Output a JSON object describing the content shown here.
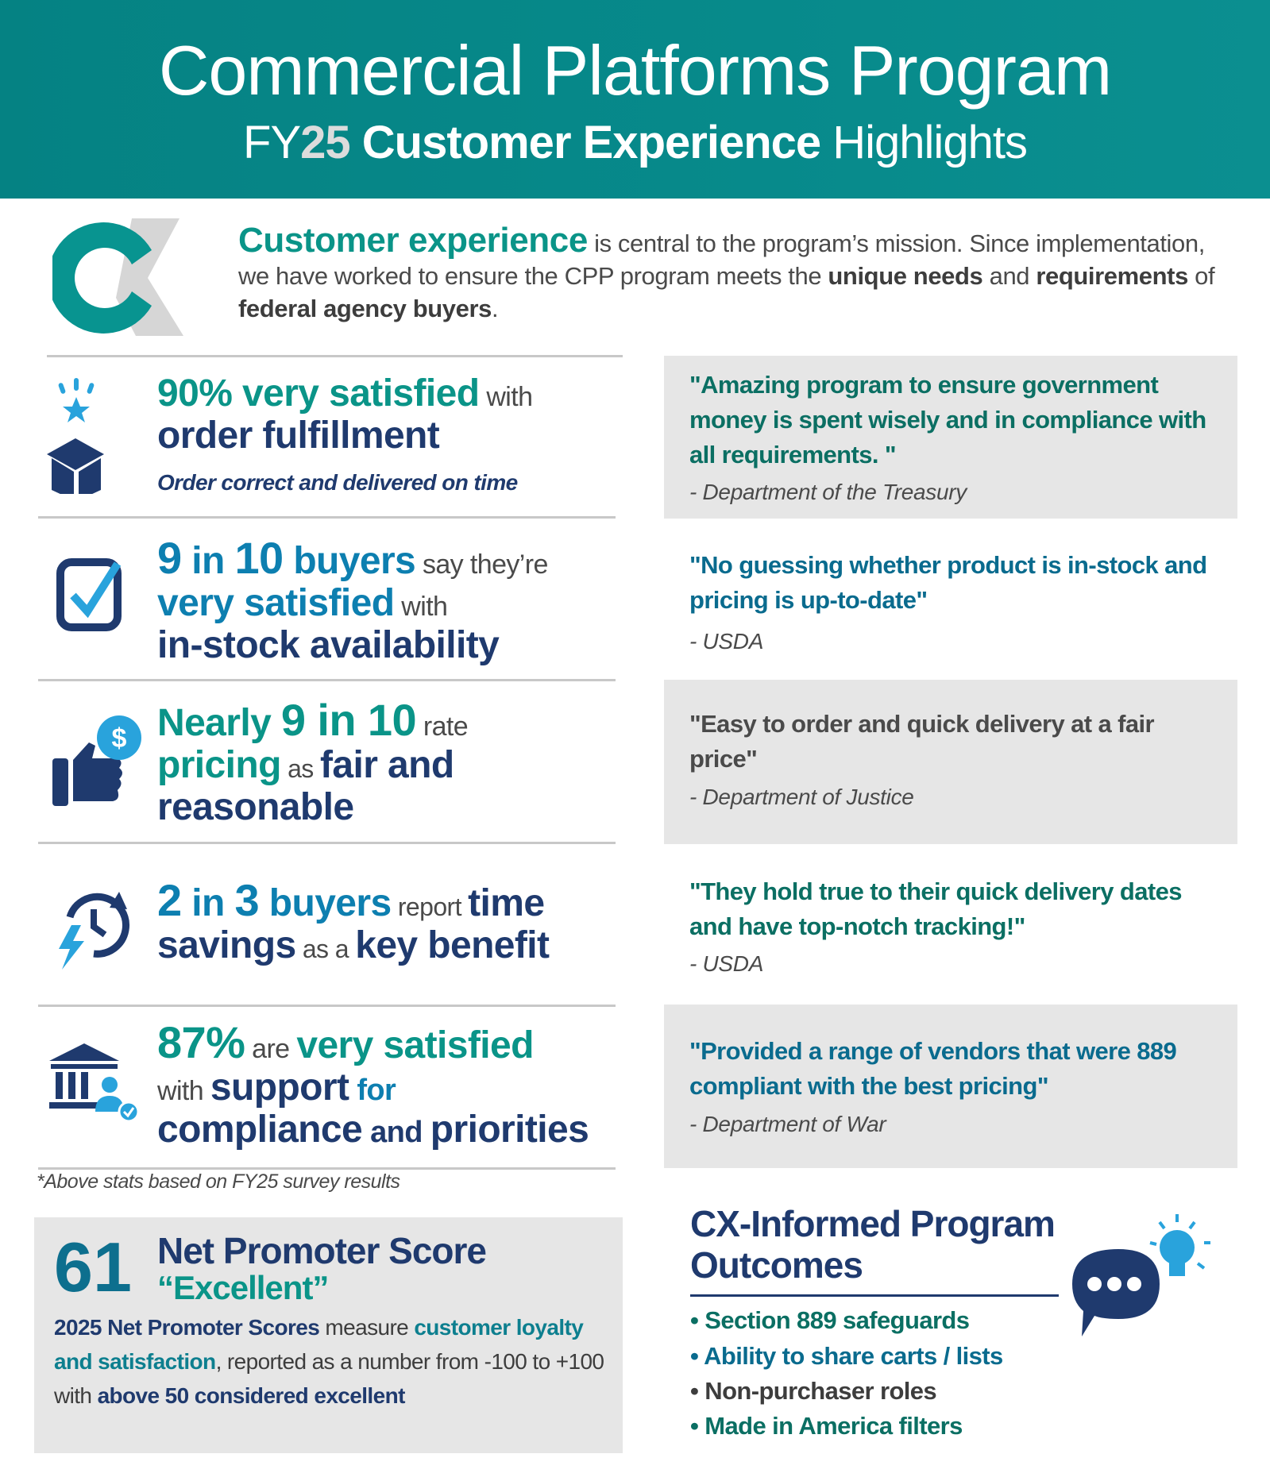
{
  "header": {
    "title": "Commercial Platforms Program",
    "subtitle_fy": "FY",
    "subtitle_year": "25",
    "subtitle_bold": "Customer Experience",
    "subtitle_rest": "Highlights"
  },
  "intro": {
    "logo_text": "CX",
    "lead": "Customer experience",
    "t1": " is central to the program’s mission. Since implementation, we have worked to ensure the CPP program meets the ",
    "b1": "unique needs",
    "t2": " and ",
    "b2": "requirements",
    "t3": " of ",
    "b3": "federal agency buyers",
    "t4": "."
  },
  "stats": [
    {
      "icon": "open-box-star-icon",
      "a": "90%",
      "b": " very satisfied",
      "c": " with",
      "d": "order fulfillment",
      "e": "Order correct and delivered on time"
    },
    {
      "icon": "checkbox-check-icon",
      "a": "9",
      "b": " in ",
      "c": "10",
      "d": " buyers",
      "e": " say they’re",
      "f": "very satisfied",
      "g": " with",
      "h": "in-stock availability"
    },
    {
      "icon": "thumbs-up-dollar-icon",
      "a": "Nearly ",
      "b": "9 in 10",
      "c": " rate",
      "d": "pricing",
      "e": " as ",
      "f": "fair and",
      "g": "reasonable"
    },
    {
      "icon": "clock-lightning-icon",
      "a": "2",
      "b": " in ",
      "c": "3",
      "d": " buyers",
      "e": " report ",
      "f": "time",
      "g": "savings",
      "h": " as a ",
      "i": "key benefit"
    },
    {
      "icon": "government-building-person-icon",
      "a": "87%",
      "b": " are ",
      "c": "very satisfied",
      "d": "with ",
      "e": "support",
      "f": " for",
      "g": "compliance",
      "h": " and ",
      "i": "priorities"
    }
  ],
  "footnote": "*Above stats based on FY25 survey results",
  "nps": {
    "score": "61",
    "title": "Net Promoter Score",
    "rating": "“Excellent”",
    "d1": "2025 Net Promoter Scores",
    "d2": " measure ",
    "d3": "customer loyalty and satisfaction",
    "d4": ", reported as a number from -100 to +100 with ",
    "d5": "above 50 considered excellent"
  },
  "quotes": [
    {
      "text": "\"Amazing program to ensure government money is spent wisely and in compliance with all requirements. \"",
      "source": "-  Department of  the Treasury",
      "color": "#0b6f63"
    },
    {
      "text": "\"No guessing whether product is in-stock and pricing is up-to-date\"",
      "source": "- USDA",
      "color": "#0a6b8e"
    },
    {
      "text": "\"Easy to order and quick delivery at a fair price\"",
      "source": "-  Department of  Justice",
      "color": "#4a4a4a"
    },
    {
      "text": "\"They hold true to their quick delivery dates and have top-notch tracking!\"",
      "source": "- USDA",
      "color": "#0b6f63"
    },
    {
      "text": "\"Provided a range of vendors that were 889 compliant with the best pricing\"",
      "source": "-  Department of  War",
      "color": "#0a6b8e"
    }
  ],
  "outcomes": {
    "title": "CX-Informed Program Outcomes",
    "icon": "chat-bubble-lightbulb-icon",
    "items": [
      {
        "label": "Section 889 safeguards",
        "color": "#0b6f63"
      },
      {
        "label": "Ability to share carts / lists",
        "color": "#0a6b8e"
      },
      {
        "label": "Non-purchaser roles",
        "color": "#3d3d3d"
      },
      {
        "label": "Made in America filters",
        "color": "#0b6f63"
      }
    ]
  },
  "colors": {
    "header": "#058283",
    "teal": "#0a9488",
    "navy": "#1f3a6e",
    "blue": "#0d7fb0",
    "panel": "#e6e6e6"
  }
}
